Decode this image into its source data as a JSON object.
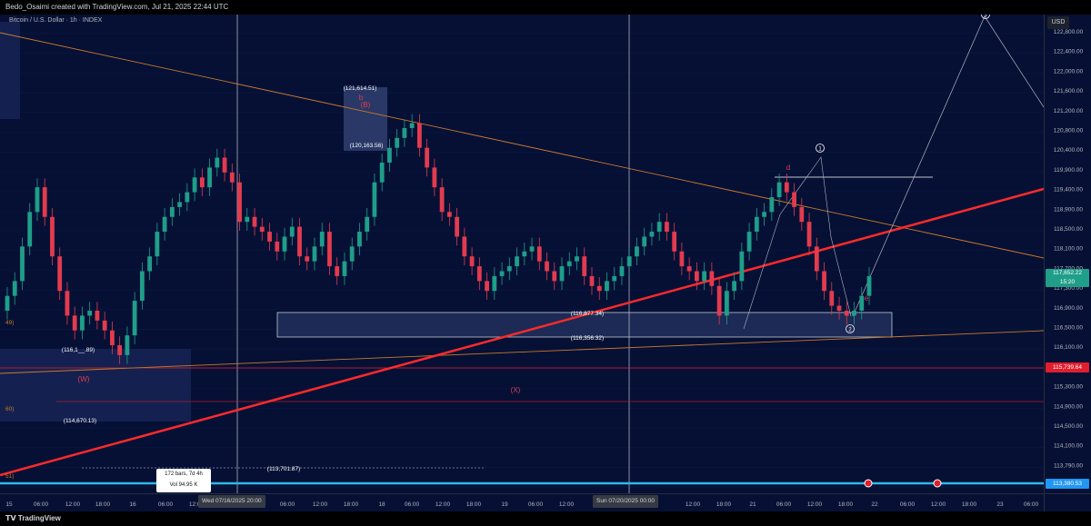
{
  "header": {
    "caption": "Bedo_Osaimi created with TradingView.com, Jul 21, 2025 22:44 UTC"
  },
  "symbol": {
    "title": "Bitcoin / U.S. Dollar · 1h · INDEX",
    "currency": "USD"
  },
  "price_axis": {
    "ticks": [
      "122,800.00",
      "122,400.00",
      "122,000.00",
      "121,600.00",
      "121,200.00",
      "120,800.00",
      "120,400.00",
      "119,900.00",
      "119,400.00",
      "118,900.00",
      "118,500.00",
      "118,100.00",
      "117,700.00",
      "117,300.00",
      "116,900.00",
      "116,500.00",
      "116,100.00",
      "115,700.00",
      "115,300.00",
      "114,900.00",
      "114,500.00",
      "114,100.00",
      "113,790.00",
      "113,450.00"
    ],
    "last_price": "117,652.22",
    "countdown": "15:20",
    "red_level": "115,739.64",
    "blue_level": "113,380.53"
  },
  "time_axis": {
    "ticks": [
      "15",
      "06:00",
      "12:00",
      "18:00",
      "16",
      "06:00",
      "12:00",
      "06:00",
      "12:00",
      "18:00",
      "18",
      "06:00",
      "12:00",
      "18:00",
      "19",
      "06:00",
      "12:00",
      "12:00",
      "18:00",
      "21",
      "06:00",
      "12:00",
      "18:00",
      "22",
      "06:00",
      "12:00",
      "18:00",
      "23",
      "06:00"
    ],
    "crosshair_left": "Wed 07/16/2025   20:00",
    "crosshair_right": "Sun 07/20/2025   00:00"
  },
  "annotations": {
    "price_labels": [
      "(121,614.51)",
      "(120,163.56)",
      "(116,877.34)",
      "(116,356.32)",
      "(116,1__.89)",
      "(114,670.13)",
      "(113,701.87)"
    ],
    "wave_labels": [
      "b",
      "(B)",
      "d",
      "e",
      "(W)",
      "(X)",
      "1",
      "2",
      "3"
    ],
    "left_edge": [
      "49)",
      "60)",
      "51)"
    ]
  },
  "stats_box": {
    "bars": "172 bars, 7d 4h",
    "volume": "Vol 94.95 K"
  },
  "footer": {
    "brand": "TradingView"
  },
  "chart_data": {
    "type": "candlestick",
    "title": "Bitcoin / U.S. Dollar · 1h · INDEX",
    "ylim": [
      113300,
      123000
    ],
    "close_series": [
      117300,
      117600,
      118300,
      119000,
      119500,
      118900,
      118100,
      117400,
      116900,
      116600,
      116900,
      117000,
      116800,
      116600,
      116300,
      116100,
      116500,
      117200,
      117800,
      118100,
      118600,
      118900,
      119100,
      119200,
      119400,
      119700,
      119500,
      119900,
      120100,
      119800,
      119600,
      118800,
      118900,
      118700,
      118600,
      118400,
      118200,
      118500,
      118700,
      118100,
      118000,
      118300,
      118600,
      117900,
      117700,
      118000,
      118300,
      118600,
      118900,
      119600,
      120000,
      120300,
      120500,
      120700,
      120800,
      120300,
      119900,
      119500,
      119000,
      118900,
      118500,
      118100,
      117900,
      117600,
      117400,
      117700,
      117800,
      117900,
      118100,
      118200,
      118300,
      118000,
      117800,
      117600,
      117900,
      118000,
      118100,
      117700,
      117500,
      117400,
      117600,
      117700,
      117900,
      118100,
      118300,
      118500,
      118600,
      118800,
      118600,
      118200,
      117900,
      117800,
      117600,
      117800,
      117500,
      116900,
      117400,
      117600,
      118200,
      118600,
      118900,
      119000,
      119300,
      119600,
      119400,
      119100,
      118800,
      118300,
      117800,
      117400,
      117100,
      117000,
      116900,
      117000,
      117300,
      117700
    ]
  },
  "colors": {
    "bull": "#1f9e89",
    "bear": "#e23b4e",
    "trend": "#ff2a2a",
    "orange": "#c87a2b",
    "bg": "#061035"
  }
}
